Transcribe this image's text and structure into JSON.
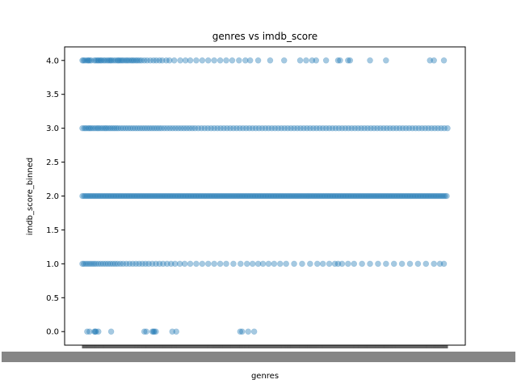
{
  "chart_data": {
    "type": "scatter",
    "title": "genres vs imdb_score",
    "xlabel": "genres",
    "ylabel": "imdb_score_binned",
    "ylim": [
      -0.2,
      4.2
    ],
    "y_ticks": [
      0.0,
      0.5,
      1.0,
      1.5,
      2.0,
      2.5,
      3.0,
      3.5,
      4.0
    ],
    "y_tick_labels": [
      "0.0",
      "0.5",
      "1.0",
      "1.5",
      "2.0",
      "2.5",
      "3.0",
      "3.5",
      "4.0"
    ],
    "x_category_count": 914,
    "marker_color": "#1f77b4",
    "marker_alpha": 0.4,
    "grid": false,
    "series": [
      {
        "y": 4.0,
        "x": [
          0,
          3,
          7,
          12,
          15,
          18,
          22,
          30,
          34,
          38,
          41,
          45,
          48,
          53,
          57,
          62,
          66,
          70,
          73,
          78,
          83,
          88,
          91,
          95,
          99,
          103,
          108,
          112,
          116,
          121,
          125,
          129,
          134,
          138,
          143,
          148,
          155,
          162,
          170,
          178,
          185,
          193,
          200,
          210,
          218,
          230,
          245,
          258,
          270,
          285,
          300,
          315,
          330,
          345,
          360,
          375,
          392,
          408,
          420,
          440,
          470,
          505,
          545,
          560,
          575,
          585,
          610,
          640,
          645,
          665,
          670,
          720,
          760,
          870,
          880,
          905,
          918,
          930,
          945
        ]
      },
      {
        "y": 3.0,
        "x": [
          0,
          5,
          9,
          14,
          18,
          22,
          27,
          32,
          37,
          41,
          46,
          51,
          56,
          60,
          65,
          70,
          75,
          80,
          85,
          90,
          96,
          102,
          108,
          114,
          120,
          126,
          132,
          138,
          144,
          150,
          156,
          162,
          168,
          174,
          180,
          186,
          192,
          198,
          205,
          212,
          219,
          226,
          233,
          240,
          247,
          254,
          261,
          268,
          275,
          282,
          290,
          298,
          306,
          314,
          322,
          330,
          338,
          346,
          354,
          362,
          370,
          378,
          386,
          394,
          402,
          410,
          418,
          426,
          434,
          442,
          450,
          458,
          466,
          474,
          482,
          490,
          498,
          506,
          514,
          522,
          530,
          538,
          546,
          554,
          562,
          570,
          578,
          586,
          594,
          602,
          610,
          618,
          626,
          634,
          642,
          650,
          658,
          666,
          674,
          682,
          690,
          698,
          706,
          714,
          722,
          730,
          738,
          746,
          754,
          762,
          770,
          778,
          786,
          794,
          802,
          810,
          818,
          826,
          834,
          842,
          850,
          858,
          866,
          874,
          882,
          890,
          898,
          906,
          914,
          922,
          930,
          938,
          946,
          954,
          962,
          970,
          978,
          986,
          994,
          1002,
          1010,
          1018,
          1026,
          1034,
          1042,
          1050,
          1058,
          1066,
          1074
        ]
      },
      {
        "y": 2.0,
        "x": [
          0,
          4,
          8,
          12,
          16,
          20,
          24,
          28,
          32,
          36,
          40,
          44,
          48,
          52,
          56,
          60,
          64,
          68,
          72,
          76,
          80,
          84,
          88,
          92,
          96,
          100,
          104,
          108,
          112,
          116,
          120,
          124,
          128,
          132,
          136,
          140,
          144,
          148,
          152,
          156,
          160,
          164,
          168,
          172,
          176,
          180,
          184,
          188,
          192,
          196,
          200,
          204,
          208,
          212,
          216,
          220,
          224,
          228,
          232,
          236,
          240,
          244,
          248,
          252,
          256,
          260,
          264,
          268,
          272,
          276,
          280,
          284,
          288,
          292,
          296,
          300,
          304,
          308,
          312,
          316,
          320,
          324,
          328,
          332,
          336,
          340,
          344,
          348,
          352,
          356,
          360,
          364,
          368,
          372,
          376,
          380,
          384,
          388,
          392,
          396,
          400,
          404,
          408,
          412,
          416,
          420,
          424,
          428,
          432,
          436,
          440,
          444,
          448,
          452,
          456,
          460,
          464,
          468,
          472,
          476,
          480,
          484,
          488,
          492,
          496,
          500,
          504,
          508,
          512,
          516,
          520,
          524,
          528,
          532,
          536,
          540,
          544,
          548,
          552,
          556,
          560,
          564,
          568,
          572,
          576,
          580,
          584,
          588,
          592,
          596,
          600,
          604,
          608,
          612,
          616,
          620,
          624,
          628,
          632,
          636,
          640,
          644,
          648,
          652,
          656,
          660,
          664,
          668,
          672,
          676,
          680,
          684,
          688,
          692,
          696,
          700,
          704,
          708,
          712,
          716,
          720,
          724,
          728,
          732,
          736,
          740,
          744,
          748,
          752,
          756,
          760,
          764,
          768,
          772,
          776,
          780,
          784,
          788,
          792,
          796,
          800,
          804,
          808,
          812,
          816,
          820,
          824,
          828,
          832,
          836,
          840,
          844,
          848,
          852,
          856,
          860,
          864,
          868,
          872,
          876,
          880,
          884,
          888,
          892,
          896,
          900,
          904,
          908,
          912
        ]
      },
      {
        "y": 1.0,
        "x": [
          0,
          4,
          9,
          14,
          19,
          24,
          29,
          34,
          40,
          46,
          52,
          58,
          64,
          70,
          76,
          82,
          88,
          95,
          102,
          110,
          118,
          126,
          134,
          142,
          150,
          158,
          166,
          175,
          184,
          193,
          202,
          212,
          222,
          232,
          244,
          256,
          270,
          285,
          300,
          315,
          330,
          345,
          360,
          378,
          396,
          412,
          426,
          440,
          452,
          466,
          480,
          495,
          510,
          530,
          550,
          570,
          588,
          602,
          618,
          632,
          640,
          650,
          665,
          680,
          700,
          720,
          740,
          760,
          780,
          800,
          820,
          840,
          860,
          880,
          895,
          905
        ]
      },
      {
        "y": 0.0,
        "x": [
          12,
          18,
          30,
          32,
          34,
          40,
          72,
          155,
          160,
          175,
          178,
          180,
          184,
          225,
          235,
          395,
          400,
          415,
          430
        ]
      }
    ]
  }
}
